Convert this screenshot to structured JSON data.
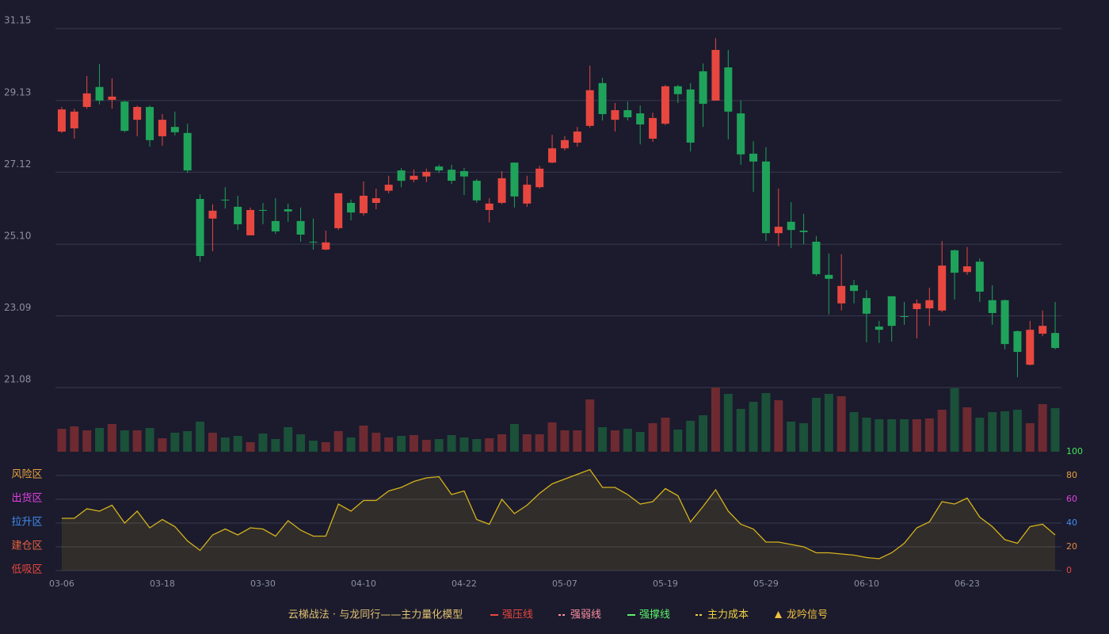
{
  "chart_data": [
    {
      "type": "candlestick",
      "up_color": "#e8473f",
      "down_color": "#1fa35a",
      "ylim": [
        21.08,
        31.15
      ],
      "yticks": [
        31.15,
        29.13,
        27.12,
        {
          "value": 25.1,
          "label": "25.10"
        },
        23.09,
        21.08
      ],
      "grid": true,
      "open": [
        28.26,
        28.35,
        28.95,
        29.51,
        29.15,
        29.1,
        28.59,
        28.95,
        28.13,
        28.39,
        28.22,
        26.37,
        25.82,
        26.35,
        26.15,
        25.35,
        26.06,
        25.75,
        26.08,
        25.75,
        25.17,
        24.95,
        25.55,
        26.26,
        25.97,
        26.26,
        26.6,
        27.17,
        26.91,
        27.0,
        27.28,
        27.19,
        27.15,
        26.88,
        26.06,
        26.26,
        27.39,
        26.24,
        26.7,
        27.39,
        27.79,
        27.95,
        28.42,
        29.62,
        28.59,
        28.86,
        28.77,
        28.06,
        28.48,
        29.53,
        29.44,
        29.95,
        29.13,
        30.06,
        28.77,
        27.64,
        27.42,
        25.41,
        25.73,
        25.48,
        25.17,
        24.24,
        23.44,
        23.95,
        23.59,
        22.79,
        23.64,
        23.08,
        23.28,
        23.3,
        23.24,
        24.93,
        24.32,
        24.61,
        23.53,
        23.53,
        22.66,
        21.72,
        22.59,
        22.61
      ],
      "close": [
        28.88,
        28.82,
        29.33,
        29.13,
        29.24,
        28.28,
        28.95,
        28.02,
        28.59,
        28.24,
        27.17,
        24.77,
        26.04,
        26.33,
        25.66,
        26.06,
        26.04,
        25.46,
        26.02,
        25.37,
        25.15,
        25.15,
        26.53,
        25.99,
        26.46,
        26.39,
        26.77,
        26.88,
        27.02,
        27.13,
        27.17,
        26.88,
        27.0,
        26.33,
        26.24,
        26.95,
        26.44,
        26.77,
        27.22,
        27.79,
        28.02,
        28.26,
        29.42,
        28.75,
        28.86,
        28.66,
        28.46,
        28.64,
        29.53,
        29.31,
        27.95,
        29.04,
        30.55,
        28.82,
        27.62,
        27.42,
        25.41,
        25.59,
        25.5,
        25.44,
        24.26,
        24.13,
        23.93,
        23.79,
        23.15,
        22.7,
        22.81,
        23.06,
        23.44,
        23.53,
        24.5,
        24.3,
        24.48,
        23.77,
        23.17,
        22.3,
        22.08,
        22.7,
        22.81,
        22.19
      ],
      "high": [
        28.95,
        28.9,
        29.82,
        30.15,
        29.75,
        29.13,
        28.99,
        28.99,
        28.75,
        28.82,
        28.48,
        26.5,
        26.22,
        26.7,
        26.46,
        26.13,
        26.26,
        26.39,
        26.24,
        26.13,
        25.82,
        25.48,
        26.53,
        26.35,
        26.86,
        26.66,
        27.02,
        27.24,
        27.2,
        27.22,
        27.33,
        27.33,
        27.24,
        26.93,
        26.39,
        27.15,
        27.39,
        27.02,
        27.3,
        28.17,
        28.13,
        28.39,
        30.11,
        29.77,
        29.06,
        29.1,
        28.99,
        28.79,
        29.57,
        29.57,
        29.62,
        30.17,
        30.88,
        30.55,
        29.13,
        27.99,
        27.82,
        26.66,
        26.28,
        25.95,
        25.33,
        24.84,
        24.82,
        24.1,
        23.81,
        22.95,
        23.64,
        23.48,
        23.55,
        23.88,
        25.19,
        24.95,
        25.02,
        24.7,
        23.95,
        23.55,
        22.68,
        22.95,
        23.24,
        23.48
      ],
      "low": [
        28.22,
        28.06,
        28.9,
        29.02,
        28.9,
        28.24,
        28.13,
        27.84,
        27.86,
        28.15,
        27.1,
        24.61,
        24.9,
        26.1,
        25.5,
        25.35,
        25.66,
        25.39,
        25.73,
        25.17,
        24.95,
        24.93,
        25.5,
        25.77,
        25.9,
        26.08,
        26.53,
        26.7,
        26.84,
        26.84,
        27.1,
        26.79,
        26.48,
        26.26,
        25.71,
        26.22,
        26.13,
        26.15,
        26.66,
        27.37,
        27.73,
        27.84,
        28.37,
        28.57,
        28.26,
        28.57,
        27.9,
        27.97,
        28.44,
        29.06,
        27.7,
        28.39,
        29.13,
        28.04,
        27.33,
        26.57,
        25.19,
        25.04,
        24.99,
        25.1,
        24.21,
        23.13,
        23.24,
        23.44,
        22.35,
        22.33,
        22.37,
        22.84,
        22.46,
        22.81,
        23.19,
        23.55,
        24.24,
        23.48,
        22.84,
        22.15,
        21.37,
        21.7,
        22.52,
        22.15
      ]
    },
    {
      "type": "bar",
      "up_color": "#6e2a31",
      "down_color": "#1b5039",
      "values": [
        29,
        32,
        27,
        30,
        35,
        27,
        27,
        30,
        17,
        24,
        26,
        38,
        24,
        18,
        20,
        12,
        23,
        16,
        31,
        22,
        14,
        12,
        26,
        18,
        33,
        24,
        18,
        20,
        21,
        15,
        16,
        21,
        18,
        16,
        17,
        22,
        35,
        22,
        22,
        37,
        27,
        27,
        66,
        31,
        27,
        29,
        25,
        36,
        43,
        28,
        39,
        46,
        81,
        73,
        54,
        63,
        74,
        65,
        38,
        36,
        68,
        73,
        70,
        50,
        43,
        41,
        41,
        41,
        41,
        42,
        53,
        80,
        56,
        43,
        50,
        51,
        53,
        36,
        60,
        55
      ]
    },
    {
      "type": "area",
      "color": "#d4b21c",
      "ylim": [
        0,
        100
      ],
      "yticks": [
        0,
        20,
        40,
        60,
        80,
        100
      ],
      "ytick_colors": [
        "#e8473f",
        "#e8893f",
        "#3f8cf0",
        "#e040e0",
        "#e8a23f",
        "#3fe85a"
      ],
      "zones": [
        {
          "label": "风险区",
          "value": 80,
          "color": "#e8a23f"
        },
        {
          "label": "出货区",
          "value": 60,
          "color": "#e040e0"
        },
        {
          "label": "拉升区",
          "value": 40,
          "color": "#3f8cf0"
        },
        {
          "label": "建仓区",
          "value": 20,
          "color": "#e8603f"
        },
        {
          "label": "低吸区",
          "value": 0,
          "color": "#e8473f"
        }
      ],
      "categories": [
        "03-06",
        null,
        null,
        null,
        null,
        null,
        null,
        null,
        "03-18",
        null,
        null,
        null,
        null,
        null,
        null,
        null,
        "03-30",
        null,
        null,
        null,
        null,
        null,
        null,
        null,
        "04-10",
        null,
        null,
        null,
        null,
        null,
        null,
        null,
        "04-22",
        null,
        null,
        null,
        null,
        null,
        null,
        null,
        "05-07",
        null,
        null,
        null,
        null,
        null,
        null,
        null,
        "05-19",
        null,
        null,
        null,
        null,
        null,
        null,
        null,
        "05-29",
        null,
        null,
        null,
        null,
        null,
        null,
        null,
        "06-10",
        null,
        null,
        null,
        null,
        null,
        null,
        null,
        "06-23",
        null,
        null,
        null,
        null,
        null,
        null,
        null
      ],
      "values": [
        44,
        44,
        52,
        50,
        55,
        40,
        50,
        36,
        43,
        37,
        25,
        17,
        30,
        35,
        30,
        36,
        35,
        29,
        42,
        34,
        29,
        29,
        56,
        50,
        59,
        59,
        67,
        70,
        75,
        78,
        79,
        64,
        67,
        43,
        39,
        60,
        48,
        55,
        65,
        73,
        77,
        81,
        85,
        70,
        70,
        64,
        56,
        58,
        69,
        63,
        41,
        54,
        68,
        50,
        39,
        35,
        24,
        24,
        22,
        20,
        15,
        15,
        14,
        13,
        11,
        10,
        15,
        23,
        36,
        41,
        58,
        56,
        61,
        45,
        37,
        26,
        23,
        37,
        39,
        30
      ]
    }
  ],
  "legend": {
    "title": "云梯战法 · 与龙同行——主力量化模型",
    "items": [
      {
        "name": "强压线",
        "color": "#e8473f",
        "style": "solid"
      },
      {
        "name": "强弱线",
        "color": "#ff8fa0",
        "style": "dashed"
      },
      {
        "name": "强撑线",
        "color": "#5cf06a",
        "style": "solid"
      },
      {
        "name": "主力成本",
        "color": "#f0d040",
        "style": "dashed"
      },
      {
        "name": "龙吟信号",
        "color": "#f0c040",
        "style": "triangle"
      }
    ]
  }
}
